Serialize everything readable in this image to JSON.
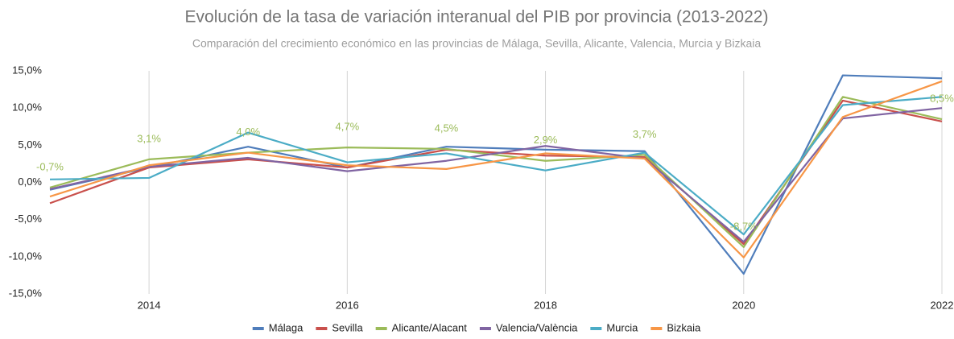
{
  "chart_data": {
    "type": "line",
    "title": "Evolución de la tasa de variación interanual del PIB por provincia (2013-2022)",
    "subtitle": "Comparación del crecimiento económico en las provincias de Málaga, Sevilla, Alicante, Valencia, Murcia y Bizkaia",
    "x": [
      2013,
      2014,
      2015,
      2016,
      2017,
      2018,
      2019,
      2020,
      2021,
      2022
    ],
    "xlim": [
      2013,
      2022
    ],
    "xticks": [
      2014,
      2016,
      2018,
      2020,
      2022
    ],
    "ylim": [
      -15,
      15
    ],
    "yticks": [
      {
        "value": 15,
        "label": "15,0%"
      },
      {
        "value": 10,
        "label": "10,0%"
      },
      {
        "value": 5,
        "label": "5,0%"
      },
      {
        "value": 0,
        "label": "0,0%"
      },
      {
        "value": -5,
        "label": "-5,0%"
      },
      {
        "value": -10,
        "label": "-10,0%"
      },
      {
        "value": -15,
        "label": "-15,0%"
      }
    ],
    "grid": "x",
    "legend": "bottom",
    "series": [
      {
        "name": "Málaga",
        "color": "#4f7dbb",
        "values": [
          -1.0,
          2.0,
          4.8,
          2.0,
          4.8,
          4.4,
          4.2,
          -12.3,
          14.4,
          14.0
        ]
      },
      {
        "name": "Sevilla",
        "color": "#c9504c",
        "values": [
          -2.8,
          2.0,
          3.1,
          2.0,
          4.4,
          3.6,
          3.4,
          -8.3,
          11.0,
          8.2
        ]
      },
      {
        "name": "Alicante/Alacant",
        "color": "#9bbb59",
        "values": [
          -0.7,
          3.1,
          4.0,
          4.7,
          4.5,
          2.9,
          3.7,
          -8.7,
          11.5,
          8.5
        ],
        "value_labels": [
          "-0,7%",
          "3,1%",
          "4,0%",
          "4,7%",
          "4,5%",
          "2,9%",
          "3,7%",
          "-8,7%",
          null,
          "8,5%"
        ]
      },
      {
        "name": "Valencia/València",
        "color": "#8064a2",
        "values": [
          -0.9,
          2.1,
          3.3,
          1.5,
          2.9,
          4.9,
          3.2,
          -8.0,
          8.6,
          10.0
        ]
      },
      {
        "name": "Murcia",
        "color": "#4bacc6",
        "values": [
          0.4,
          0.6,
          6.7,
          2.7,
          3.9,
          1.6,
          4.0,
          -7.0,
          10.4,
          11.5
        ]
      },
      {
        "name": "Bizkaia",
        "color": "#f79646",
        "values": [
          -1.9,
          2.3,
          4.0,
          2.3,
          1.8,
          3.9,
          3.2,
          -10.1,
          8.8,
          13.6
        ]
      }
    ]
  }
}
